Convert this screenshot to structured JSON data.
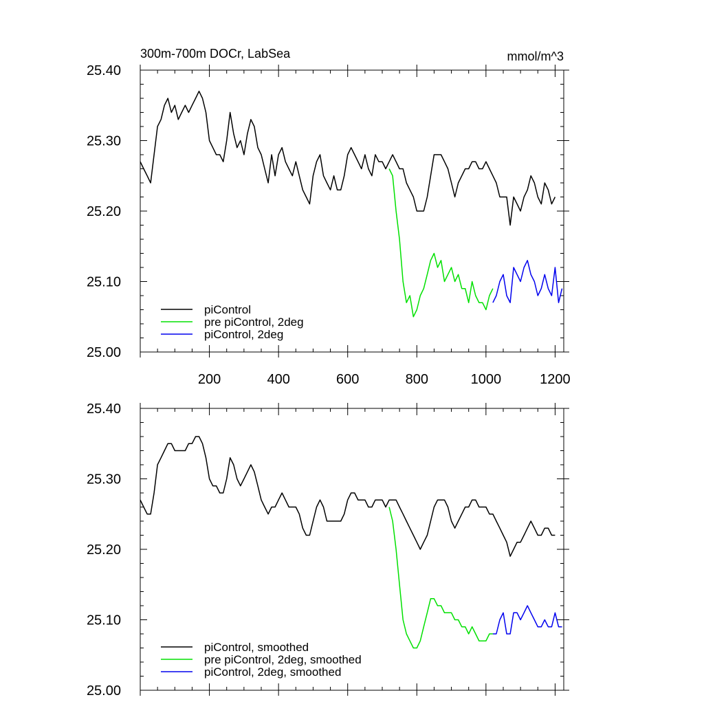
{
  "chart_data": [
    {
      "type": "line",
      "title": "300m-700m DOCr, LabSea",
      "units": "mmol/m^3",
      "xlim": [
        0,
        1225
      ],
      "ylim": [
        25.0,
        25.4
      ],
      "xticks": [
        200,
        400,
        600,
        800,
        1000,
        1200
      ],
      "xtick_labels": [
        "200",
        "400",
        "600",
        "800",
        "1000",
        "1200"
      ],
      "yticks": [
        25.0,
        25.1,
        25.2,
        25.3,
        25.4
      ],
      "ytick_labels": [
        "25.00",
        "25.10",
        "25.20",
        "25.30",
        "25.40"
      ],
      "grid": false,
      "legend_position": "bottom-left",
      "series": [
        {
          "name": "piControl",
          "color": "#000000",
          "x": [
            0,
            10,
            20,
            30,
            40,
            50,
            60,
            70,
            80,
            90,
            100,
            110,
            120,
            130,
            140,
            150,
            160,
            170,
            180,
            190,
            200,
            210,
            220,
            230,
            240,
            250,
            260,
            270,
            280,
            290,
            300,
            310,
            320,
            330,
            340,
            350,
            360,
            370,
            380,
            390,
            400,
            410,
            420,
            430,
            440,
            450,
            460,
            470,
            480,
            490,
            500,
            510,
            520,
            530,
            540,
            550,
            560,
            570,
            580,
            590,
            600,
            610,
            620,
            630,
            640,
            650,
            660,
            670,
            680,
            690,
            700,
            710,
            720,
            730,
            740,
            750,
            760,
            770,
            780,
            790,
            800,
            810,
            820,
            830,
            840,
            850,
            860,
            870,
            880,
            890,
            900,
            910,
            920,
            930,
            940,
            950,
            960,
            970,
            980,
            990,
            1000,
            1010,
            1020,
            1030,
            1040,
            1050,
            1060,
            1070,
            1080,
            1090,
            1100,
            1110,
            1120,
            1130,
            1140,
            1150,
            1160,
            1170,
            1180,
            1190,
            1200
          ],
          "values": [
            25.27,
            25.26,
            25.25,
            25.24,
            25.28,
            25.32,
            25.33,
            25.35,
            25.36,
            25.34,
            25.35,
            25.33,
            25.34,
            25.35,
            25.34,
            25.35,
            25.36,
            25.37,
            25.36,
            25.34,
            25.3,
            25.29,
            25.28,
            25.28,
            25.27,
            25.3,
            25.34,
            25.31,
            25.29,
            25.3,
            25.28,
            25.31,
            25.33,
            25.32,
            25.29,
            25.28,
            25.26,
            25.24,
            25.28,
            25.25,
            25.28,
            25.29,
            25.27,
            25.26,
            25.25,
            25.27,
            25.25,
            25.23,
            25.22,
            25.21,
            25.25,
            25.27,
            25.28,
            25.25,
            25.24,
            25.23,
            25.25,
            25.23,
            25.23,
            25.25,
            25.28,
            25.29,
            25.28,
            25.27,
            25.26,
            25.28,
            25.26,
            25.25,
            25.28,
            25.27,
            25.27,
            25.26,
            25.27,
            25.28,
            25.27,
            25.26,
            25.26,
            25.24,
            25.23,
            25.22,
            25.2,
            25.2,
            25.2,
            25.22,
            25.25,
            25.28,
            25.28,
            25.28,
            25.27,
            25.26,
            25.24,
            25.22,
            25.24,
            25.25,
            25.26,
            25.26,
            25.27,
            25.27,
            25.26,
            25.26,
            25.27,
            25.26,
            25.25,
            25.24,
            25.22,
            25.22,
            25.22,
            25.18,
            25.22,
            25.21,
            25.2,
            25.22,
            25.23,
            25.25,
            25.24,
            25.22,
            25.21,
            25.24,
            25.23,
            25.21,
            25.22
          ]
        },
        {
          "name": "pre piControl, 2deg",
          "color": "#00e000",
          "x": [
            720,
            730,
            740,
            750,
            760,
            770,
            780,
            790,
            800,
            810,
            820,
            830,
            840,
            850,
            860,
            870,
            880,
            890,
            900,
            910,
            920,
            930,
            940,
            950,
            960,
            970,
            980,
            990,
            1000,
            1010,
            1020
          ],
          "values": [
            25.26,
            25.25,
            25.2,
            25.16,
            25.1,
            25.07,
            25.08,
            25.05,
            25.06,
            25.08,
            25.09,
            25.11,
            25.13,
            25.14,
            25.12,
            25.13,
            25.1,
            25.11,
            25.12,
            25.1,
            25.11,
            25.09,
            25.09,
            25.07,
            25.1,
            25.08,
            25.07,
            25.07,
            25.06,
            25.08,
            25.09
          ]
        },
        {
          "name": "piControl, 2deg",
          "color": "#0000ee",
          "x": [
            1020,
            1030,
            1040,
            1050,
            1060,
            1070,
            1080,
            1090,
            1100,
            1110,
            1120,
            1130,
            1140,
            1150,
            1160,
            1170,
            1180,
            1190,
            1200,
            1210,
            1220
          ],
          "values": [
            25.07,
            25.08,
            25.1,
            25.11,
            25.08,
            25.07,
            25.12,
            25.11,
            25.1,
            25.12,
            25.13,
            25.11,
            25.1,
            25.08,
            25.09,
            25.11,
            25.09,
            25.08,
            25.12,
            25.07,
            25.09
          ]
        }
      ]
    },
    {
      "type": "line",
      "title": "",
      "xlim": [
        0,
        1225
      ],
      "ylim": [
        25.0,
        25.4
      ],
      "yticks": [
        25.0,
        25.1,
        25.2,
        25.3,
        25.4
      ],
      "ytick_labels": [
        "25.00",
        "25.10",
        "25.20",
        "25.30",
        "25.40"
      ],
      "grid": false,
      "legend_position": "bottom-left",
      "series": [
        {
          "name": "piControl, smoothed",
          "color": "#000000",
          "x": [
            0,
            10,
            20,
            30,
            40,
            50,
            60,
            70,
            80,
            90,
            100,
            110,
            120,
            130,
            140,
            150,
            160,
            170,
            180,
            190,
            200,
            210,
            220,
            230,
            240,
            250,
            260,
            270,
            280,
            290,
            300,
            310,
            320,
            330,
            340,
            350,
            360,
            370,
            380,
            390,
            400,
            410,
            420,
            430,
            440,
            450,
            460,
            470,
            480,
            490,
            500,
            510,
            520,
            530,
            540,
            550,
            560,
            570,
            580,
            590,
            600,
            610,
            620,
            630,
            640,
            650,
            660,
            670,
            680,
            690,
            700,
            710,
            720,
            730,
            740,
            750,
            760,
            770,
            780,
            790,
            800,
            810,
            820,
            830,
            840,
            850,
            860,
            870,
            880,
            890,
            900,
            910,
            920,
            930,
            940,
            950,
            960,
            970,
            980,
            990,
            1000,
            1010,
            1020,
            1030,
            1040,
            1050,
            1060,
            1070,
            1080,
            1090,
            1100,
            1110,
            1120,
            1130,
            1140,
            1150,
            1160,
            1170,
            1180,
            1190,
            1200
          ],
          "values": [
            25.27,
            25.26,
            25.25,
            25.25,
            25.28,
            25.32,
            25.33,
            25.34,
            25.35,
            25.35,
            25.34,
            25.34,
            25.34,
            25.34,
            25.35,
            25.35,
            25.36,
            25.36,
            25.35,
            25.33,
            25.3,
            25.29,
            25.29,
            25.28,
            25.28,
            25.3,
            25.33,
            25.32,
            25.3,
            25.29,
            25.3,
            25.31,
            25.32,
            25.31,
            25.29,
            25.27,
            25.26,
            25.25,
            25.26,
            25.26,
            25.27,
            25.28,
            25.27,
            25.26,
            25.26,
            25.26,
            25.25,
            25.23,
            25.22,
            25.22,
            25.24,
            25.26,
            25.27,
            25.26,
            25.24,
            25.24,
            25.24,
            25.24,
            25.24,
            25.25,
            25.27,
            25.28,
            25.28,
            25.27,
            25.27,
            25.27,
            25.26,
            25.26,
            25.27,
            25.27,
            25.27,
            25.26,
            25.27,
            25.27,
            25.27,
            25.26,
            25.25,
            25.24,
            25.23,
            25.22,
            25.21,
            25.2,
            25.21,
            25.22,
            25.24,
            25.26,
            25.27,
            25.27,
            25.27,
            25.26,
            25.24,
            25.23,
            25.24,
            25.25,
            25.26,
            25.26,
            25.27,
            25.27,
            25.26,
            25.26,
            25.26,
            25.25,
            25.25,
            25.24,
            25.23,
            25.22,
            25.21,
            25.19,
            25.2,
            25.21,
            25.21,
            25.22,
            25.23,
            25.24,
            25.23,
            25.22,
            25.22,
            25.23,
            25.23,
            25.22,
            25.22
          ]
        },
        {
          "name": "pre piControl, 2deg, smoothed",
          "color": "#00e000",
          "x": [
            720,
            730,
            740,
            750,
            760,
            770,
            780,
            790,
            800,
            810,
            820,
            830,
            840,
            850,
            860,
            870,
            880,
            890,
            900,
            910,
            920,
            930,
            940,
            950,
            960,
            970,
            980,
            990,
            1000,
            1010,
            1020
          ],
          "values": [
            25.26,
            25.24,
            25.2,
            25.15,
            25.1,
            25.08,
            25.07,
            25.06,
            25.06,
            25.07,
            25.09,
            25.11,
            25.13,
            25.13,
            25.12,
            25.12,
            25.11,
            25.11,
            25.11,
            25.1,
            25.1,
            25.09,
            25.09,
            25.08,
            25.09,
            25.08,
            25.07,
            25.07,
            25.07,
            25.08,
            25.08
          ]
        },
        {
          "name": "piControl, 2deg, smoothed",
          "color": "#0000ee",
          "x": [
            1020,
            1030,
            1040,
            1050,
            1060,
            1070,
            1080,
            1090,
            1100,
            1110,
            1120,
            1130,
            1140,
            1150,
            1160,
            1170,
            1180,
            1190,
            1200,
            1210,
            1220
          ],
          "values": [
            25.08,
            25.08,
            25.1,
            25.11,
            25.08,
            25.08,
            25.11,
            25.11,
            25.1,
            25.11,
            25.12,
            25.11,
            25.1,
            25.09,
            25.09,
            25.1,
            25.09,
            25.09,
            25.11,
            25.09,
            25.09
          ]
        }
      ]
    }
  ]
}
